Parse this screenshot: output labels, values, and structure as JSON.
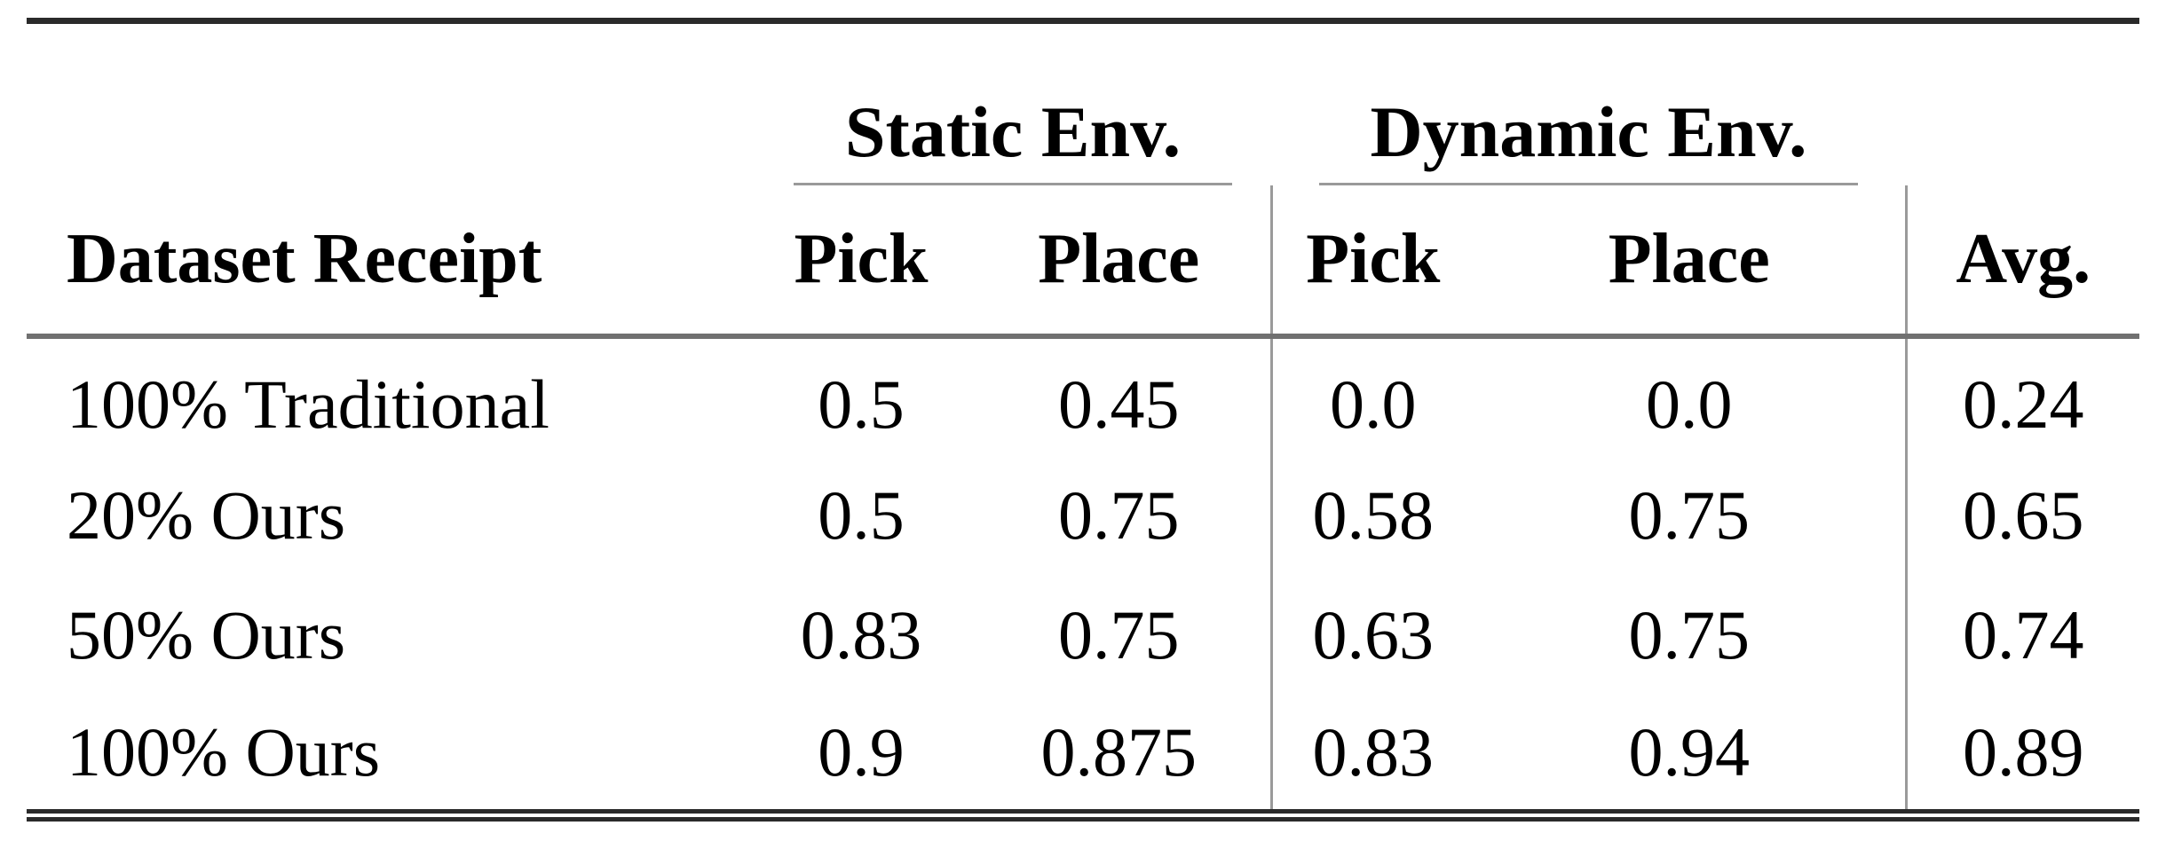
{
  "table": {
    "group_headers": [
      {
        "label": "Static Env."
      },
      {
        "label": "Dynamic Env."
      }
    ],
    "column_headers": {
      "dataset": "Dataset Receipt",
      "static_pick": "Pick",
      "static_place": "Place",
      "dynamic_pick": "Pick",
      "dynamic_place": "Place",
      "avg": "Avg."
    },
    "rows": [
      {
        "dataset": "100% Traditional",
        "values": [
          "0.5",
          "0.45",
          "0.0",
          "0.0",
          "0.24"
        ]
      },
      {
        "dataset": "20% Ours",
        "values": [
          "0.5",
          "0.75",
          "0.58",
          "0.75",
          "0.65"
        ]
      },
      {
        "dataset": "50% Ours",
        "values": [
          "0.83",
          "0.75",
          "0.63",
          "0.75",
          "0.74"
        ]
      },
      {
        "dataset": "100% Ours",
        "values": [
          "0.9",
          "0.875",
          "0.83",
          "0.94",
          "0.89"
        ]
      }
    ]
  },
  "colors": {
    "text": "#000000",
    "rule_dark": "#2a2a2a",
    "rule_gray": "#9a9a9a",
    "header_rule": "#707070",
    "background": "#ffffff"
  },
  "chart_data": {
    "type": "table",
    "columns": [
      "Dataset Receipt",
      "Static Env. Pick",
      "Static Env. Place",
      "Dynamic Env. Pick",
      "Dynamic Env. Place",
      "Avg."
    ],
    "rows": [
      [
        "100% Traditional",
        0.5,
        0.45,
        0.0,
        0.0,
        0.24
      ],
      [
        "20% Ours",
        0.5,
        0.75,
        0.58,
        0.75,
        0.65
      ],
      [
        "50% Ours",
        0.83,
        0.75,
        0.63,
        0.75,
        0.74
      ],
      [
        "100% Ours",
        0.9,
        0.875,
        0.83,
        0.94,
        0.89
      ]
    ]
  }
}
